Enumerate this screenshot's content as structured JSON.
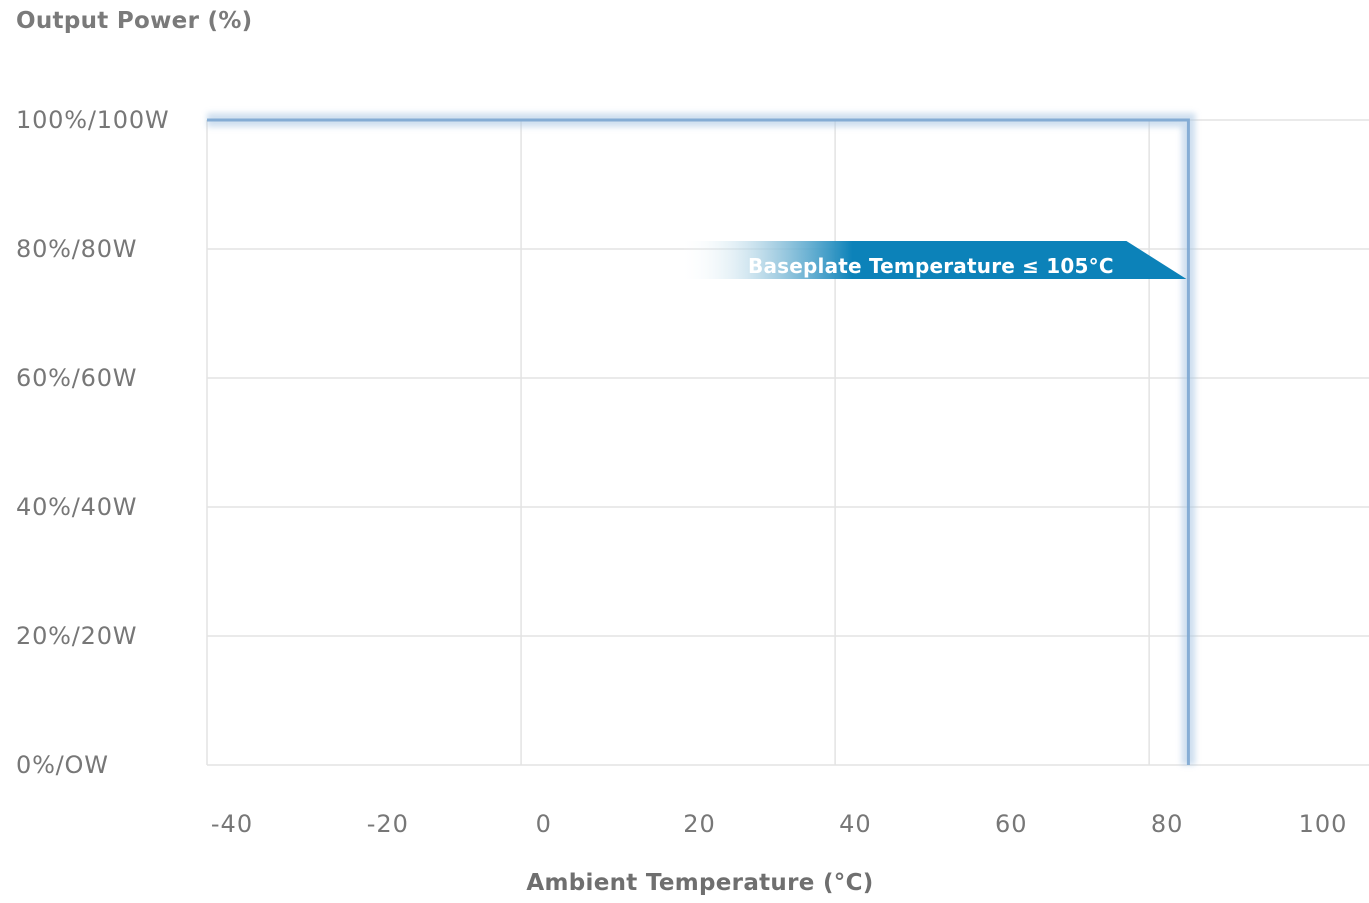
{
  "chart_data": {
    "type": "line",
    "ylabel": "Output Power (%)",
    "xlabel": "Ambient Temperature (°C)",
    "x_ticks": [
      -40,
      -20,
      0,
      20,
      40,
      60,
      80,
      100
    ],
    "x_tick_labels": [
      "-40",
      "-20",
      "0",
      "20",
      "40",
      "60",
      "80",
      "100"
    ],
    "y_ticks": [
      0,
      20,
      40,
      60,
      80,
      100
    ],
    "y_tick_labels": [
      "0%/OW",
      "20%/20W",
      "40%/40W",
      "60%/60W",
      "80%/80W",
      "100%/100W"
    ],
    "xlim": [
      -40,
      108
    ],
    "ylim": [
      0,
      100
    ],
    "grid": true,
    "series": [
      {
        "x": [
          -40,
          85,
          85
        ],
        "y": [
          100,
          100,
          0
        ]
      }
    ],
    "annotation": {
      "text": "Baseplate Temperature ≤ 105°C",
      "x": 85,
      "y": 80
    },
    "colors": {
      "line": "#a9c6e3",
      "line_core": "#7da7d1",
      "annotation": "#0c82b9",
      "grid": "#e3e3e3",
      "text": "#777777"
    }
  }
}
